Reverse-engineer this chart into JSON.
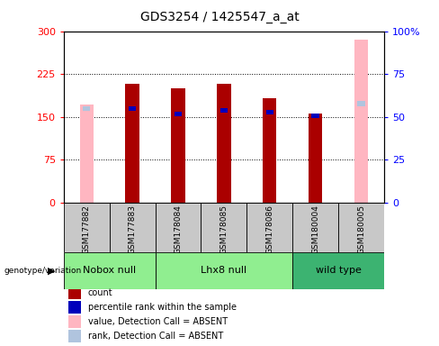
{
  "title": "GDS3254 / 1425547_a_at",
  "samples": [
    "GSM177882",
    "GSM177883",
    "GSM178084",
    "GSM178085",
    "GSM178086",
    "GSM180004",
    "GSM180005"
  ],
  "count_values": [
    0,
    208,
    200,
    208,
    182,
    155,
    0
  ],
  "percentile_values": [
    55,
    56,
    53,
    55,
    54,
    52,
    59
  ],
  "absent_value_values": [
    172,
    0,
    0,
    0,
    0,
    0,
    285
  ],
  "absent_rank_values": [
    56,
    0,
    0,
    0,
    0,
    0,
    59
  ],
  "is_absent": [
    true,
    false,
    false,
    false,
    false,
    false,
    true
  ],
  "ylim_left": [
    0,
    300
  ],
  "ylim_right": [
    0,
    100
  ],
  "yticks_left": [
    0,
    75,
    150,
    225,
    300
  ],
  "ytick_labels_left": [
    "0",
    "75",
    "150",
    "225",
    "300"
  ],
  "ytick_labels_right": [
    "0",
    "25",
    "50",
    "75",
    "100%"
  ],
  "group_configs": [
    {
      "indices": [
        0,
        1
      ],
      "label": "Nobox null",
      "color": "#90EE90"
    },
    {
      "indices": [
        2,
        3,
        4
      ],
      "label": "Lhx8 null",
      "color": "#90EE90"
    },
    {
      "indices": [
        5,
        6
      ],
      "label": "wild type",
      "color": "#3CB371"
    }
  ],
  "bar_width": 0.3,
  "count_color": "#AA0000",
  "percentile_color": "#0000BB",
  "absent_value_color": "#FFB6C1",
  "absent_rank_color": "#B0C4DE",
  "bg_color": "#FFFFFF",
  "plot_bg_color": "#FFFFFF",
  "legend_items": [
    {
      "label": "count",
      "color": "#AA0000"
    },
    {
      "label": "percentile rank within the sample",
      "color": "#0000BB"
    },
    {
      "label": "value, Detection Call = ABSENT",
      "color": "#FFB6C1"
    },
    {
      "label": "rank, Detection Call = ABSENT",
      "color": "#B0C4DE"
    }
  ]
}
